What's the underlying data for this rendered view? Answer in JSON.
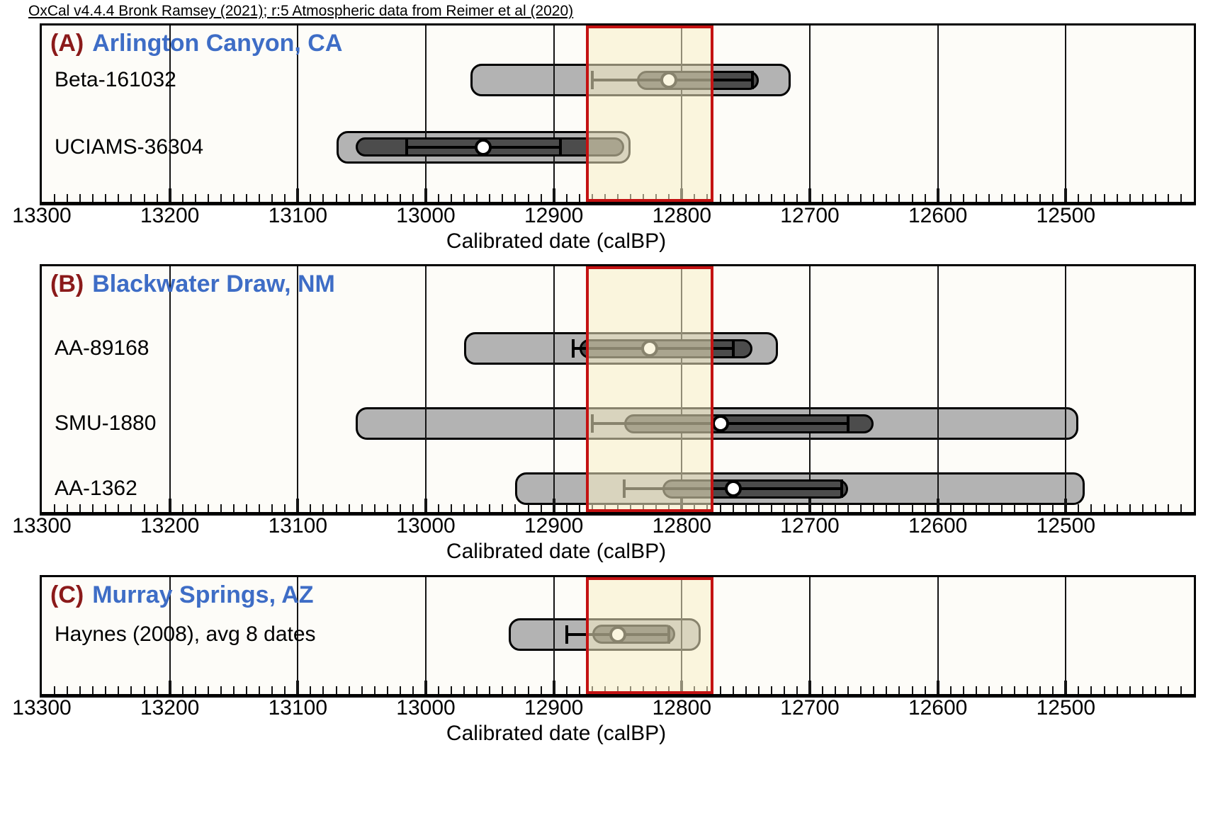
{
  "annotation": "OxCal v4.4.4 Bronk Ramsey (2021); r:5 Atmospheric data from Reimer et al (2020)",
  "colors": {
    "panel_letter": "#8b1a1a",
    "panel_title": "#3e6dc6",
    "outer_bar": "#b3b3b3",
    "inner_bar": "#4c4c4c",
    "marker_fill": "#ffffff",
    "band_fill": "rgba(248,238,198,0.55)",
    "band_border": "#c41212",
    "grid": "#141414"
  },
  "chart_data": {
    "type": "bar",
    "orientation": "horizontal-ranged-intervals",
    "x_axis": {
      "label": "Calibrated date (calBP)",
      "left_value": 13300,
      "right_value": 12400,
      "major_tick_step": 100,
      "minor_tick_step": 10,
      "major_ticks": [
        13300,
        13200,
        13100,
        13000,
        12900,
        12800,
        12700,
        12600,
        12500
      ],
      "grid": true
    },
    "highlight_band": {
      "from": 12875,
      "to": 12775,
      "fill": "#f8eec6",
      "border": "#c41212"
    },
    "panels": [
      {
        "id": "A",
        "letter": "(A)",
        "title": "Arlington Canyon, CA",
        "samples": [
          {
            "label": "Beta-161032",
            "outer_bar_range": [
              12965,
              12715
            ],
            "inner_bar_range": [
              12835,
              12740
            ],
            "error_bar_range": [
              12870,
              12745
            ],
            "marker": 12810
          },
          {
            "label": "UCIAMS-36304",
            "outer_bar_range": [
              13070,
              12840
            ],
            "inner_bar_range": [
              13055,
              12845
            ],
            "error_bar_range": [
              13015,
              12895
            ],
            "marker": 12955
          }
        ]
      },
      {
        "id": "B",
        "letter": "(B)",
        "title": "Blackwater Draw, NM",
        "samples": [
          {
            "label": "AA-89168",
            "outer_bar_range": [
              12970,
              12725
            ],
            "inner_bar_range": [
              12880,
              12745
            ],
            "error_bar_range": [
              12885,
              12760
            ],
            "marker": 12825
          },
          {
            "label": "SMU-1880",
            "outer_bar_range": [
              13055,
              12490
            ],
            "inner_bar_range": [
              12845,
              12650
            ],
            "error_bar_range": [
              12870,
              12670
            ],
            "marker": 12770
          },
          {
            "label": "AA-1362",
            "outer_bar_range": [
              12930,
              12485
            ],
            "inner_bar_range": [
              12815,
              12670
            ],
            "error_bar_range": [
              12845,
              12675
            ],
            "marker": 12760
          }
        ]
      },
      {
        "id": "C",
        "letter": "(C)",
        "title": "Murray Springs, AZ",
        "samples": [
          {
            "label": "Haynes (2008), avg 8 dates",
            "outer_bar_range": [
              12935,
              12785
            ],
            "inner_bar_range": [
              12870,
              12805
            ],
            "error_bar_range": [
              12890,
              12810
            ],
            "marker": 12850
          }
        ]
      }
    ]
  }
}
